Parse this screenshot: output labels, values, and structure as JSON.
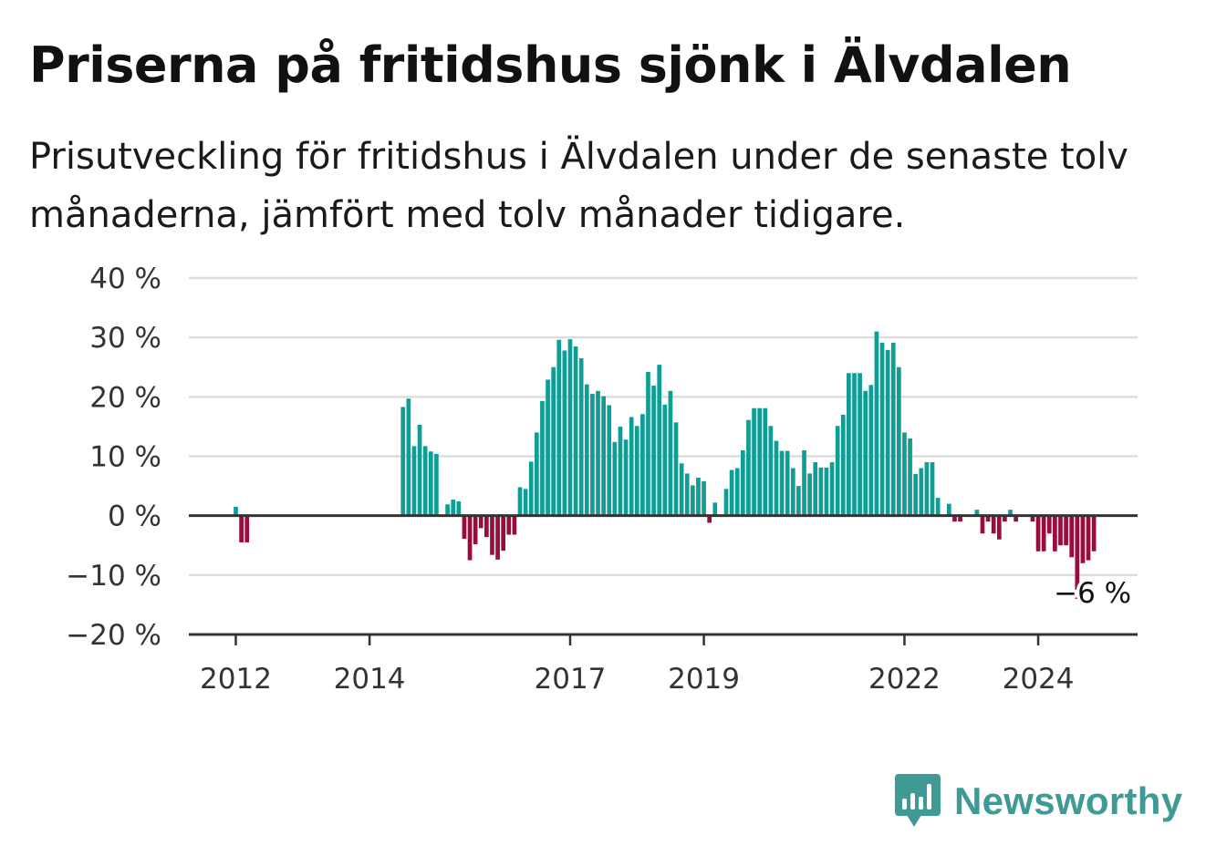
{
  "header": {
    "title": "Priserna på fritidshus sjönk i Älvdalen",
    "subtitle": "Prisutveckling för fritidshus i Älvdalen under de senaste tolv månaderna, jämfört med tolv månader tidigare."
  },
  "brand": {
    "name": "Newsworthy",
    "color": "#3f9a95",
    "icon": "bar-chart-speech-bubble-icon"
  },
  "colors": {
    "positive": "#0f9e96",
    "negative": "#9a0c3e",
    "grid": "#dddddd",
    "axis": "#333333"
  },
  "chart_data": {
    "type": "bar",
    "start_period": "2012-01",
    "frequency": "monthly",
    "y_unit": "%",
    "ylim": [
      -20,
      40
    ],
    "yticks": [
      -20,
      -10,
      0,
      10,
      20,
      30,
      40
    ],
    "ytick_labels": [
      "−20 %",
      "−10 %",
      "0 %",
      "10 %",
      "20 %",
      "30 %",
      "40 %"
    ],
    "xticks": [
      "2012",
      "2014",
      "2017",
      "2019",
      "2022",
      "2024"
    ],
    "grid": true,
    "values": [
      1.5,
      -4.5,
      -4.5,
      null,
      null,
      null,
      null,
      null,
      null,
      null,
      null,
      null,
      null,
      null,
      null,
      null,
      null,
      null,
      null,
      null,
      null,
      null,
      null,
      null,
      null,
      null,
      null,
      null,
      null,
      null,
      18.3,
      19.7,
      11.7,
      15.3,
      11.7,
      10.8,
      10.4,
      null,
      1.9,
      2.7,
      2.4,
      -3.9,
      -7.5,
      -4.8,
      -2.1,
      -3.6,
      -6.6,
      -7.4,
      -5.9,
      -3.2,
      -3.2,
      4.8,
      4.5,
      9.1,
      14.0,
      19.3,
      22.9,
      25.0,
      29.6,
      27.8,
      29.7,
      28.5,
      26.5,
      22.1,
      20.5,
      21.0,
      20.1,
      18.6,
      12.4,
      15.0,
      12.8,
      16.6,
      15.1,
      17.1,
      24.2,
      21.9,
      25.4,
      18.7,
      21.0,
      15.7,
      8.8,
      7.1,
      5.1,
      6.4,
      5.8,
      -1.2,
      2.2,
      null,
      4.5,
      7.7,
      8.0,
      11.0,
      16.1,
      18.1,
      18.1,
      18.1,
      15.1,
      12.6,
      10.9,
      10.9,
      8.0,
      5.0,
      11.0,
      7.1,
      9.0,
      8.1,
      8.1,
      9.0,
      15.1,
      17.0,
      24.0,
      24.0,
      24.0,
      21.0,
      22.0,
      31.0,
      29.1,
      27.9,
      29.1,
      25.0,
      14.0,
      13.0,
      7.0,
      8.0,
      9.0,
      9.0,
      3.0,
      null,
      2.0,
      -1.0,
      -1.0,
      null,
      null,
      1.0,
      -3.0,
      -1.0,
      -3.0,
      -4.0,
      -1.0,
      1.0,
      -1.0,
      null,
      null,
      -1.0,
      -6.0,
      -6.0,
      -3.0,
      -6.0,
      -5.0,
      -5.0,
      -7.0,
      -14.0,
      -8.0,
      -7.5,
      -6.0
    ],
    "last_value_label": "−6 %"
  }
}
